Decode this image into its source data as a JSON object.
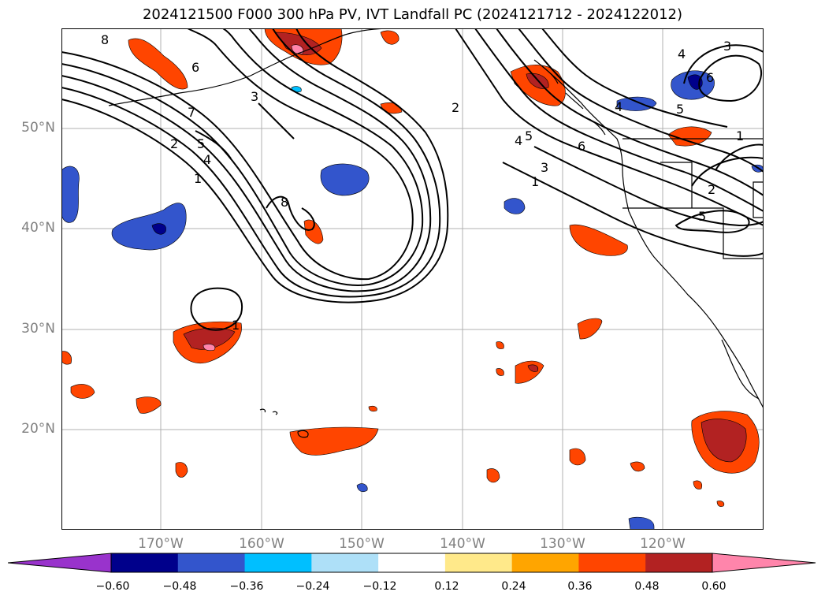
{
  "title": "2024121500 F000 300 hPa PV, IVT Landfall PC (2024121712 - 2024122012)",
  "map": {
    "lat_labels": [
      {
        "text": "50°N",
        "lat": 50
      },
      {
        "text": "40°N",
        "lat": 40
      },
      {
        "text": "30°N",
        "lat": 30
      },
      {
        "text": "20°N",
        "lat": 20
      }
    ],
    "lon_labels": [
      {
        "text": "170°W",
        "lon": -170
      },
      {
        "text": "160°W",
        "lon": -160
      },
      {
        "text": "150°W",
        "lon": -150
      },
      {
        "text": "140°W",
        "lon": -140
      },
      {
        "text": "130°W",
        "lon": -130
      },
      {
        "text": "120°W",
        "lon": -120
      }
    ],
    "extent": {
      "lon_min": -180,
      "lon_max": -110,
      "lat_min": 10,
      "lat_max": 60
    },
    "contour_labels": [
      "8",
      "6",
      "7",
      "3",
      "2",
      "5",
      "4",
      "1",
      "8",
      "1",
      "2",
      "4",
      "3",
      "5",
      "3",
      "1",
      "6",
      "4",
      "6",
      "4",
      "5",
      "1",
      "2",
      "5"
    ]
  },
  "colorbar": {
    "ticks": [
      "−0.60",
      "−0.48",
      "−0.36",
      "−0.24",
      "−0.12",
      "0.12",
      "0.24",
      "0.36",
      "0.48",
      "0.60"
    ],
    "colors": [
      "#9933cc",
      "#00008b",
      "#3355cc",
      "#00bfff",
      "#aee0f8",
      "#ffffff",
      "#ffe98a",
      "#ffa500",
      "#ff4500",
      "#b22222",
      "#ff85ab"
    ]
  }
}
